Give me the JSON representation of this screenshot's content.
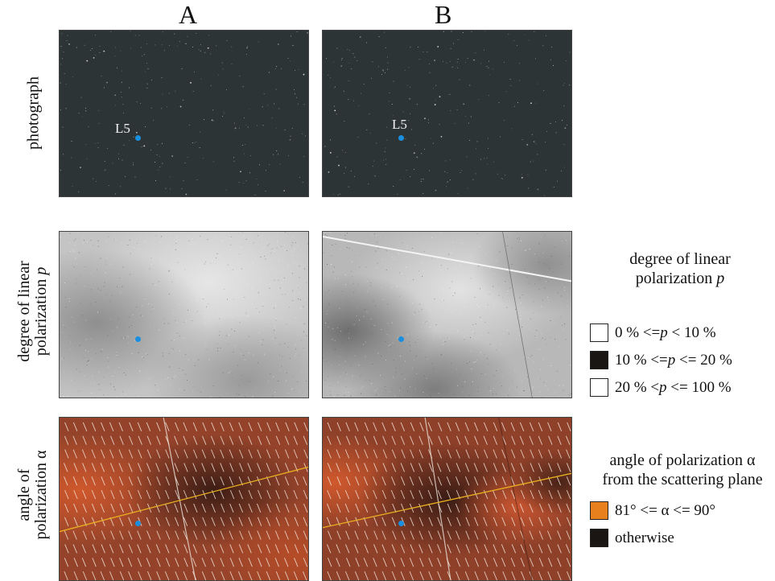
{
  "columns": {
    "a": "A",
    "b": "B"
  },
  "rows": {
    "photograph": "photograph",
    "degree_line1": "degree of linear",
    "degree_line2_prefix": "polarization ",
    "degree_symbol": "p",
    "angle_line1": "angle of",
    "angle_line2": "polarization α"
  },
  "marker_label": "L5",
  "legend_degree": {
    "title_line1": "degree of linear",
    "title_line2_prefix": "polarization ",
    "title_symbol": "p",
    "items": [
      {
        "pre": "0 % <= ",
        "sym": "p",
        "post": " < 10 %",
        "color": "#ffffff"
      },
      {
        "pre": "10 % <= ",
        "sym": "p",
        "post": " <= 20 %",
        "color": "#1a1613"
      },
      {
        "pre": "20 % < ",
        "sym": "p",
        "post": " <= 100 %",
        "color": "#ffffff"
      }
    ]
  },
  "legend_angle": {
    "title_line1": "angle of polarization α",
    "title_line2": "from the scattering plane",
    "items": [
      {
        "label": "81° <= α <= 90°",
        "color": "#e8801e"
      },
      {
        "label": "otherwise",
        "color": "#1a1613"
      }
    ]
  },
  "colors": {
    "sky_photo": "#2d3436",
    "marker": "#1a8fe0",
    "angle_base": "#8a3c24",
    "angle_bright": "#c8552c",
    "angle_dark": "#3a1c14",
    "scatter_line": "#e8b020"
  }
}
